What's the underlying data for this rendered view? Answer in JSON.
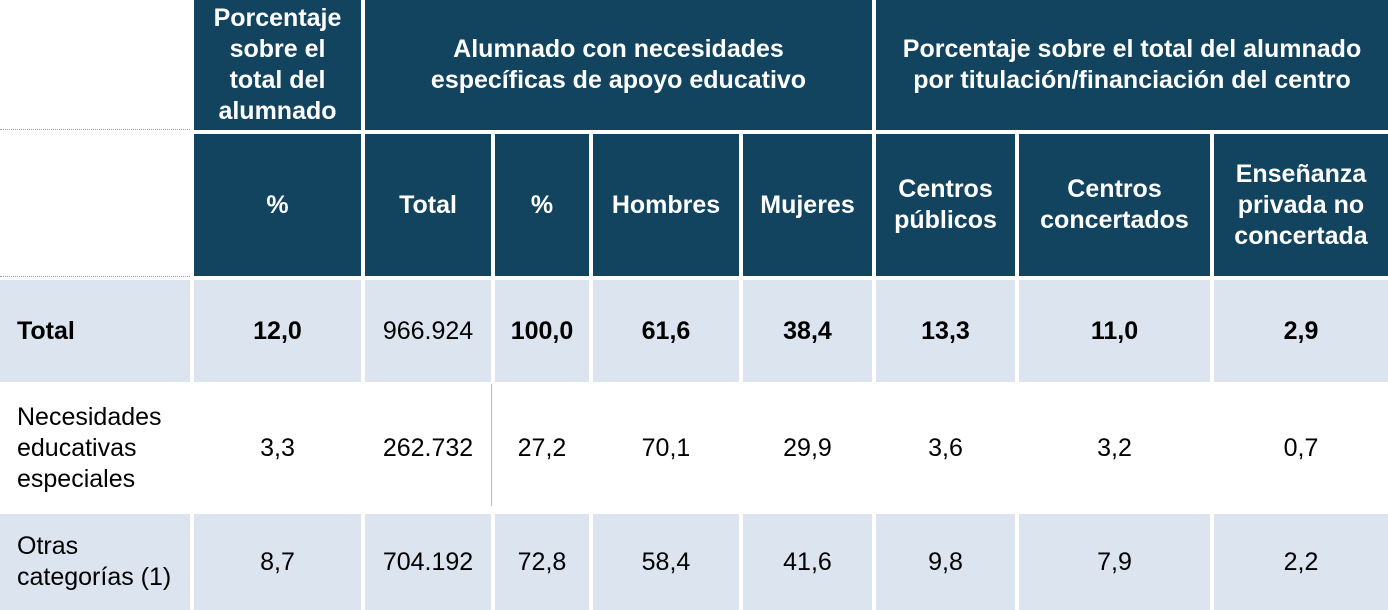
{
  "header": {
    "group1": "Porcentaje sobre el total del alumnado",
    "group2": "Alumnado con necesidades específicas de apoyo educativo",
    "group3": "Porcentaje sobre el total del alumnado por titulación/financiación del centro",
    "columns": [
      "%",
      "Total",
      "%",
      "Hombres",
      "Mujeres",
      "Centros públicos",
      "Centros concertados",
      "Enseñanza privada no concertada"
    ]
  },
  "rows": [
    {
      "label": "Total",
      "values": [
        "12,0",
        "966.924",
        "100,0",
        "61,6",
        "38,4",
        "13,3",
        "11,0",
        "2,9"
      ]
    },
    {
      "label": "Necesidades educativas especiales",
      "values": [
        "3,3",
        "262.732",
        "27,2",
        "70,1",
        "29,9",
        "3,6",
        "3,2",
        "0,7"
      ]
    },
    {
      "label": "Otras categorías (1)",
      "values": [
        "8,7",
        "704.192",
        "72,8",
        "58,4",
        "41,6",
        "9,8",
        "7,9",
        "2,2"
      ]
    }
  ],
  "colors": {
    "header_bg": "#124460",
    "row_shade": "#dce4ef",
    "header_text": "#ffffff"
  }
}
